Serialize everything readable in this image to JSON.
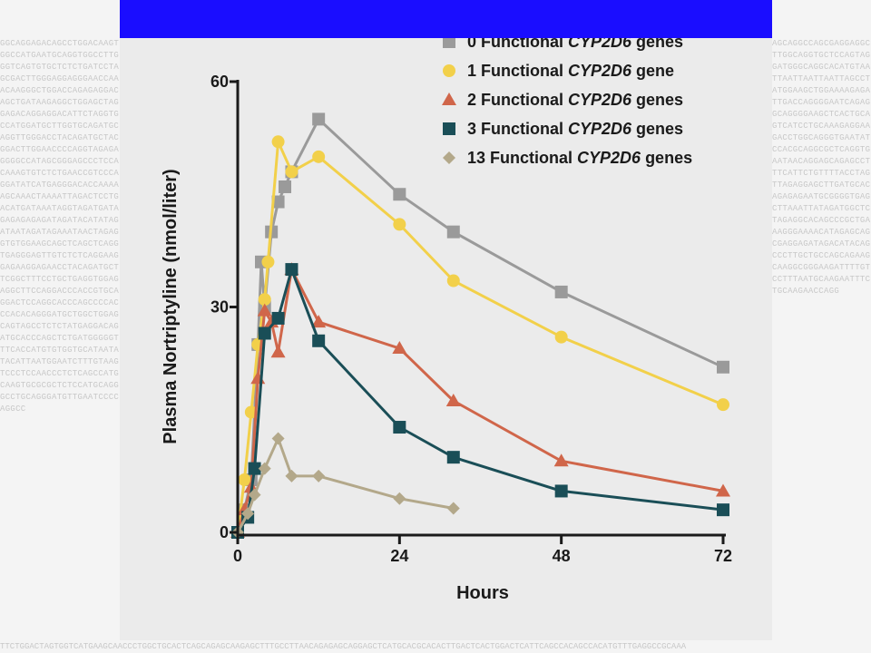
{
  "background_text": "GGCAGGAGACAGCCTGGACAAGTGGCCATGAATGCAGGTGGCCTTGGGTCAGTGTGCTCTCTGATCCTAGCGACTTGGGAGGAGGGAACCAAACAAGGGCTGGACCAGAGAGGACAGCTGATAAGAGGCTGGAGCTAGGAGACAGGAGGACATTCTAGGTGCCATGGATGCTTGGTGCAGATGCAGGTTGGGACCTACAGATGCTACGGACTTGGAACCCCAGGTAGAGAGGGGCCATAGCGGGAGCCCTCCACAAAGTGTCTCTGAACCGTCCCAGGATATCATGAGGGACACCAAAAAGCAAACTAAAATTAGACTCCTGACATGATAAATAGGTAGATGATAGAGAGAGAGATAGATACATATAGATAATAGATAGAAATAACTAGAGGTGTGGAAGCAGCTCAGCTCAGGTGAGGGAGTTGTCTCTCAGGAAGGAGAAGGAGAACCTACAGATGCTTCGGCTTTCCTGCTGAGGTGGAGAGGCTTCCAGGACCCACCGTGCAGGACTCCAGGCACCCAGCCCCACCCACACAGGGATGCTGGCTGGAGCAGTAGCCTCTCTATGAGGACAGATGCACCCAGCTCTGATGGGGGTTTCACCATGTGTGGTGCATAATATACATTAATGGAATCTTTGTAAGTCCCTCCAACCCTCTCAGCCATGCAAGTGCGCGCTCTCCATGCAGGGCCTGCAGGGATGTTGAATCCCCAGGCC",
  "background_text_right": "AGCAGGCCAGCGAGGAGGCTTGGCAGGTGCTCCAGTAGGATGGGCAGGCACATGTAATTAATTAATTAATTAGCCTATGGAAGCTGGAAAAGAGATTGACCAGGGGAATCAGAGGCAGGGGAAGCTCACTGCAGTCATCCTGCAAAGAGGAAGACCTGGCAGGGTGAATATCCACGCAGGCGCTCAGGTGAATAACAGGAGCAGAGCCTTTCATTCTGTTTTACCTAGTTAGAGGAGCTTGATGCACAGAGAGAATGCGGGGTGAGCTTAAATTATAGATGGCTCTAGAGGCACAGCCCGCTGAAAGGGAAAACATAGAGCAGCGAGGAGATAGACATACAGCCCTTGCTGCCAGCAGAAGCAAGGCGGGAAGATTTTGTCCTTTAATGCAAGAATTTCTGCAAGAACCAGG",
  "background_text_bottom": "TTCTGGACTAGTGGTCATGAAGCAACCCTGGCTGCACTCAGCAGAGCAAGAGCTTTGCCTTAACAGAGAGCAGGAGCTCATGCACGCACACTTGACTCACTGGACTCATTCAGCCACAGCCACATGTTTGAGGCCGCAAA",
  "colors": {
    "top_band": "#1a0dff",
    "figure_bg": "#ebebeb",
    "series": [
      "#9a9a9a",
      "#f2d04a",
      "#d0664a",
      "#1a4e57",
      "#b3a88a"
    ]
  },
  "chart_data": {
    "type": "line",
    "xlabel": "Hours",
    "ylabel": "Plasma Nortriptyline (nmol/liter)",
    "xlim": [
      0,
      72
    ],
    "ylim": [
      0,
      60
    ],
    "xticks": [
      0,
      24,
      48,
      72
    ],
    "yticks": [
      0,
      30,
      60
    ],
    "legend_position": "top-right",
    "series": [
      {
        "name_prefix": "0 Functional ",
        "name_gene": "CYP2D6",
        "name_suffix": " genes",
        "marker": "square",
        "points": [
          [
            0,
            0
          ],
          [
            1,
            3
          ],
          [
            2,
            7
          ],
          [
            3,
            25
          ],
          [
            3.5,
            36
          ],
          [
            4,
            30
          ],
          [
            5,
            40
          ],
          [
            6,
            44
          ],
          [
            7,
            46
          ],
          [
            8,
            48
          ],
          [
            12,
            55
          ],
          [
            24,
            45
          ],
          [
            32,
            40
          ],
          [
            48,
            32
          ],
          [
            72,
            22
          ]
        ]
      },
      {
        "name_prefix": "1 Functional ",
        "name_gene": "CYP2D6",
        "name_suffix": " gene",
        "marker": "circle",
        "points": [
          [
            0,
            0
          ],
          [
            1,
            7
          ],
          [
            2,
            16
          ],
          [
            3,
            25
          ],
          [
            4,
            31
          ],
          [
            4.5,
            36
          ],
          [
            6,
            52
          ],
          [
            8,
            48
          ],
          [
            12,
            50
          ],
          [
            24,
            41
          ],
          [
            32,
            33.5
          ],
          [
            48,
            26
          ],
          [
            72,
            17
          ]
        ]
      },
      {
        "name_prefix": "2 Functional ",
        "name_gene": "CYP2D6",
        "name_suffix": " genes",
        "marker": "triangle",
        "points": [
          [
            0,
            0
          ],
          [
            1,
            3
          ],
          [
            2,
            6
          ],
          [
            3,
            20.5
          ],
          [
            4,
            29.5
          ],
          [
            5,
            28
          ],
          [
            6,
            24
          ],
          [
            8,
            35
          ],
          [
            12,
            28
          ],
          [
            24,
            24.5
          ],
          [
            32,
            17.5
          ],
          [
            48,
            9.5
          ],
          [
            72,
            5.5
          ]
        ]
      },
      {
        "name_prefix": "3 Functional ",
        "name_gene": "CYP2D6",
        "name_suffix": " genes",
        "marker": "square",
        "points": [
          [
            0,
            0
          ],
          [
            1.5,
            2
          ],
          [
            2.5,
            8.5
          ],
          [
            4,
            26.5
          ],
          [
            6,
            28.5
          ],
          [
            8,
            35
          ],
          [
            12,
            25.5
          ],
          [
            24,
            14
          ],
          [
            32,
            10
          ],
          [
            48,
            5.5
          ],
          [
            72,
            3
          ]
        ]
      },
      {
        "name_prefix": "13 Functional ",
        "name_gene": "CYP2D6",
        "name_suffix": " genes",
        "marker": "diamond",
        "points": [
          [
            0,
            0
          ],
          [
            1.5,
            2.5
          ],
          [
            2.5,
            5
          ],
          [
            4,
            8.5
          ],
          [
            6,
            12.5
          ],
          [
            8,
            7.5
          ],
          [
            12,
            7.5
          ],
          [
            24,
            4.5
          ],
          [
            32,
            3.2
          ]
        ]
      }
    ]
  }
}
